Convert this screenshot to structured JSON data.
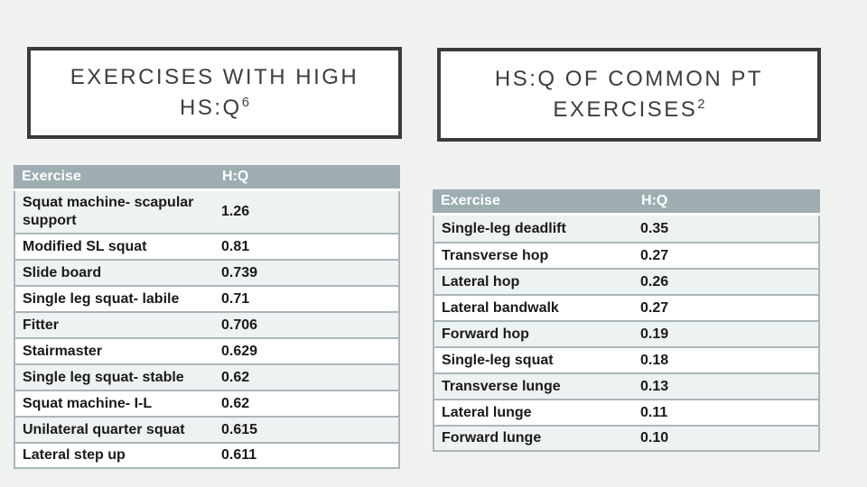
{
  "left_panel": {
    "title_line1": "EXERCISES WITH HIGH",
    "title_line2_base": "HS:Q",
    "title_superscript": "6",
    "table": {
      "header_exercise": "Exercise",
      "header_hq": "H:Q",
      "rows": [
        {
          "exercise": "Squat machine- scapular support",
          "hq": "1.26"
        },
        {
          "exercise": "Modified SL squat",
          "hq": "0.81"
        },
        {
          "exercise": "Slide board",
          "hq": "0.739"
        },
        {
          "exercise": "Single leg squat- labile",
          "hq": "0.71"
        },
        {
          "exercise": "Fitter",
          "hq": "0.706"
        },
        {
          "exercise": "Stairmaster",
          "hq": "0.629"
        },
        {
          "exercise": "Single leg squat- stable",
          "hq": "0.62"
        },
        {
          "exercise": "Squat machine- I-L",
          "hq": "0.62"
        },
        {
          "exercise": "Unilateral quarter squat",
          "hq": "0.615"
        },
        {
          "exercise": "Lateral step up",
          "hq": "0.611"
        }
      ]
    }
  },
  "right_panel": {
    "title_line1": "HS:Q OF COMMON PT",
    "title_line2_base": "EXERCISES",
    "title_superscript": "2",
    "table": {
      "header_exercise": "Exercise",
      "header_hq": "H:Q",
      "rows": [
        {
          "exercise": "Single-leg deadlift",
          "hq": "0.35"
        },
        {
          "exercise": "Transverse hop",
          "hq": "0.27"
        },
        {
          "exercise": "Lateral hop",
          "hq": "0.26"
        },
        {
          "exercise": "Lateral bandwalk",
          "hq": "0.27"
        },
        {
          "exercise": "Forward hop",
          "hq": "0.19"
        },
        {
          "exercise": "Single-leg squat",
          "hq": "0.18"
        },
        {
          "exercise": "Transverse lunge",
          "hq": "0.13"
        },
        {
          "exercise": "Lateral lunge",
          "hq": "0.11"
        },
        {
          "exercise": "Forward lunge",
          "hq": "0.10"
        }
      ]
    }
  },
  "colors": {
    "slide_background": "#f0f1f1",
    "title_border": "#3b3b3b",
    "title_text": "#3d3d3d",
    "table_header_bg": "#9dadb2",
    "table_band_row_bg": "#eff2f2",
    "table_border": "#a9b7ba",
    "table_text": "#1a1a1a"
  }
}
